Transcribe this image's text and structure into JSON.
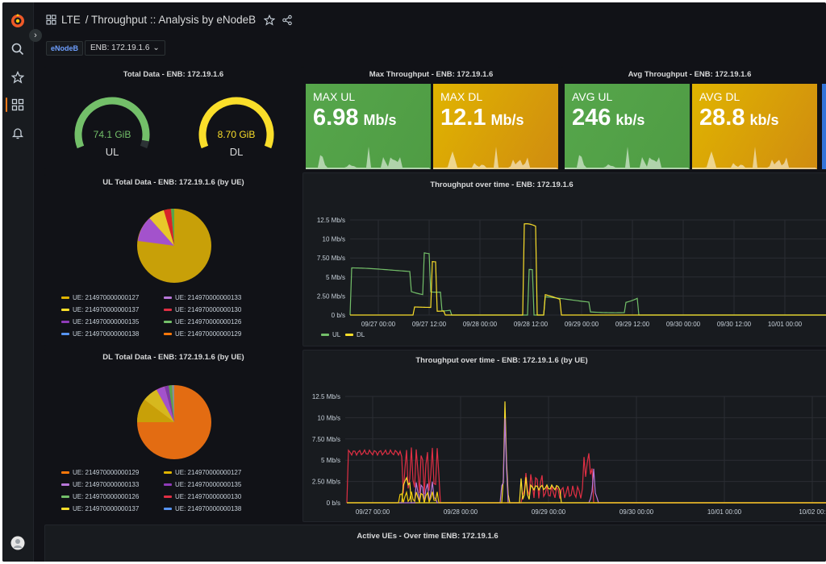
{
  "dashboard": {
    "section": "LTE",
    "title": "/ Throughput :: Analysis by eNodeB"
  },
  "icons": {
    "logo": "grafana-logo-icon",
    "search": "search-icon",
    "starred": "star-icon",
    "dashboards": "dashboards-grid-icon",
    "alerts": "bell-icon",
    "profile": "user-avatar-icon",
    "expand": "chevron-right-icon",
    "favorite": "star-outline-icon",
    "share": "share-icon"
  },
  "variable": {
    "label": "eNodeB",
    "value": "ENB: 172.19.1.6"
  },
  "total_data": {
    "title": "Total Data - ENB: 172.19.1.6",
    "gauges": [
      {
        "label": "UL",
        "value_text": "74.1 GiB",
        "fraction": 0.95,
        "color": "#73bf69"
      },
      {
        "label": "DL",
        "value_text": "8.70 GiB",
        "fraction": 1.0,
        "color": "#fade2a"
      }
    ]
  },
  "max_throughput": {
    "title": "Max Throughput - ENB: 172.19.1.6",
    "stats": [
      {
        "label": "MAX UL",
        "value": "6.98",
        "unit": "Mb/s",
        "color": "#56a64b"
      },
      {
        "label": "MAX DL",
        "value": "12.1",
        "unit": "Mb/s",
        "color": "#e0b400"
      }
    ]
  },
  "avg_throughput": {
    "title": "Avg Throughput - ENB: 172.19.1.6",
    "stats": [
      {
        "label": "AVG UL",
        "value": "246",
        "unit": "kb/s",
        "color": "#56a64b"
      },
      {
        "label": "AVG DL",
        "value": "28.8",
        "unit": "kb/s",
        "color": "#e0b400"
      }
    ]
  },
  "ul_pie": {
    "title": "UL Total Data - ENB: 172.19.1.6 (by UE)",
    "legend": [
      {
        "label": "UE: 214970000000127",
        "color": "#e0b400"
      },
      {
        "label": "UE: 214970000000133",
        "color": "#b877d9"
      },
      {
        "label": "UE: 214970000000137",
        "color": "#fade2a"
      },
      {
        "label": "UE: 214970000000130",
        "color": "#e02f44"
      },
      {
        "label": "UE: 214970000000135",
        "color": "#8f3bb8"
      },
      {
        "label": "UE: 214970000000126",
        "color": "#73bf69"
      },
      {
        "label": "UE: 214970000000138",
        "color": "#5794f2"
      },
      {
        "label": "UE: 214970000000129",
        "color": "#ff780a"
      }
    ]
  },
  "dl_pie": {
    "title": "DL Total Data - ENB: 172.19.1.6 (by UE)",
    "legend": [
      {
        "label": "UE: 214970000000129",
        "color": "#ff780a"
      },
      {
        "label": "UE: 214970000000127",
        "color": "#e0b400"
      },
      {
        "label": "UE: 214970000000133",
        "color": "#b877d9"
      },
      {
        "label": "UE: 214970000000135",
        "color": "#8f3bb8"
      },
      {
        "label": "UE: 214970000000126",
        "color": "#73bf69"
      },
      {
        "label": "UE: 214970000000130",
        "color": "#e02f44"
      },
      {
        "label": "UE: 214970000000137",
        "color": "#fade2a"
      },
      {
        "label": "UE: 214970000000138",
        "color": "#5794f2"
      }
    ]
  },
  "throughput_chart": {
    "title": "Throughput over time - ENB: 172.19.1.6",
    "y_ticks": [
      "0 b/s",
      "2.50 Mb/s",
      "5 Mb/s",
      "7.50 Mb/s",
      "10 Mb/s",
      "12.5 Mb/s"
    ],
    "x_ticks": [
      "09/27 00:00",
      "09/27 12:00",
      "09/28 00:00",
      "09/28 12:00",
      "09/29 00:00",
      "09/29 12:00",
      "09/30 00:00",
      "09/30 12:00",
      "10/01 00:00"
    ],
    "legend": [
      {
        "label": "UL",
        "color": "#73bf69"
      },
      {
        "label": "DL",
        "color": "#fade2a"
      }
    ]
  },
  "ue_chart": {
    "title": "Throughput over time - ENB: 172.19.1.6 (by UE)",
    "y_ticks": [
      "0 b/s",
      "2.50 Mb/s",
      "5 Mb/s",
      "7.50 Mb/s",
      "10 Mb/s",
      "12.5 Mb/s"
    ],
    "x_ticks": [
      "09/27 00:00",
      "09/28 00:00",
      "09/29 00:00",
      "09/30 00:00",
      "10/01 00:00",
      "10/02 00:"
    ]
  },
  "active_ues": {
    "title": "Active UEs - Over time ENB: 172.19.1.6"
  }
}
